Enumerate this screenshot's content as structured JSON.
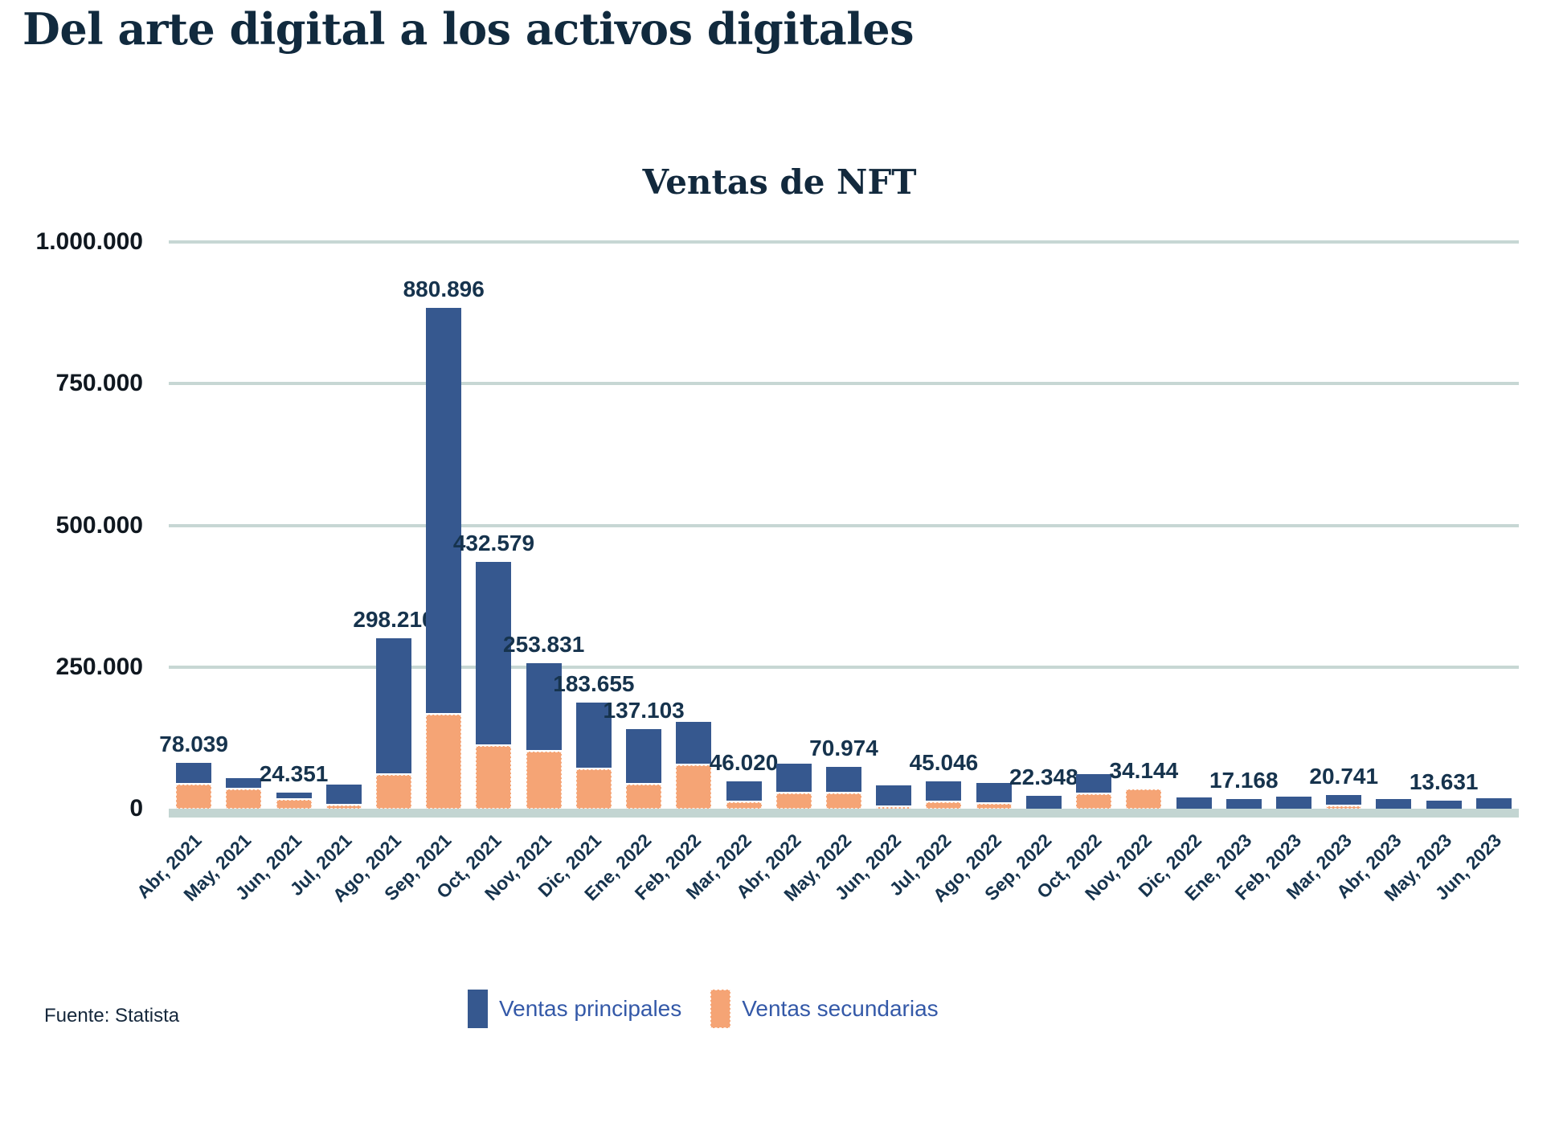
{
  "page": {
    "title": "Del arte digital a los activos digitales",
    "source": "Fuente: Statista"
  },
  "chart_data": {
    "type": "bar",
    "stacked": true,
    "title": "Ventas de NFT",
    "xlabel": "",
    "ylabel": "",
    "ylim": [
      0,
      1000000
    ],
    "grid": true,
    "legend_position": "bottom",
    "colors": {
      "primary": "#36588f",
      "secondary": "#f5a475",
      "gridline": "#c7d7d4",
      "axis_band": "#c3d5d2",
      "label_text": "#16334d",
      "legend_text": "#3459a8"
    },
    "yticks": [
      {
        "label": "1.000.000",
        "value": 1000000
      },
      {
        "label": "750.000",
        "value": 750000
      },
      {
        "label": "500.000",
        "value": 500000
      },
      {
        "label": "250.000",
        "value": 250000
      },
      {
        "label": "0",
        "value": 0
      }
    ],
    "categories": [
      "Abr, 2021",
      "May, 2021",
      "Jun, 2021",
      "Jul, 2021",
      "Ago, 2021",
      "Sep, 2021",
      "Oct, 2021",
      "Nov, 2021",
      "Dic, 2021",
      "Ene, 2022",
      "Feb, 2022",
      "Mar, 2022",
      "Abr, 2022",
      "May, 2022",
      "Jun, 2022",
      "Jul, 2022",
      "Ago, 2022",
      "Sep, 2022",
      "Oct, 2022",
      "Nov, 2022",
      "Dic, 2022",
      "Ene, 2023",
      "Feb, 2023",
      "Mar, 2023",
      "Abr, 2023",
      "May, 2023",
      "Jun, 2023"
    ],
    "series": [
      {
        "name": "Ventas principales",
        "color": "#36588f",
        "values": [
          36039,
          17000,
          9351,
          34500,
          238210,
          714896,
          321579,
          152831,
          114655,
          95103,
          74000,
          34020,
          50000,
          43474,
          35000,
          34046,
          34500,
          22348,
          32000,
          0,
          20000,
          17168,
          21000,
          16741,
          17000,
          13631,
          19000
        ]
      },
      {
        "name": "Ventas secundarias",
        "color": "#f5a475",
        "values": [
          42000,
          33500,
          15000,
          5500,
          60000,
          166000,
          111000,
          101000,
          69000,
          42000,
          77000,
          12000,
          27000,
          27500,
          3000,
          11000,
          9000,
          0,
          26000,
          34144,
          0,
          0,
          0,
          4000,
          0,
          0,
          0
        ]
      }
    ],
    "bar_total_labels": [
      "78.039",
      null,
      "24.351",
      null,
      "298.210",
      "880.896",
      "432.579",
      "253.831",
      "183.655",
      "137.103",
      null,
      "46.020",
      null,
      "70.974",
      null,
      "45.046",
      null,
      "22.348",
      null,
      "34.144",
      null,
      "17.168",
      null,
      "20.741",
      null,
      "13.631",
      null
    ]
  }
}
